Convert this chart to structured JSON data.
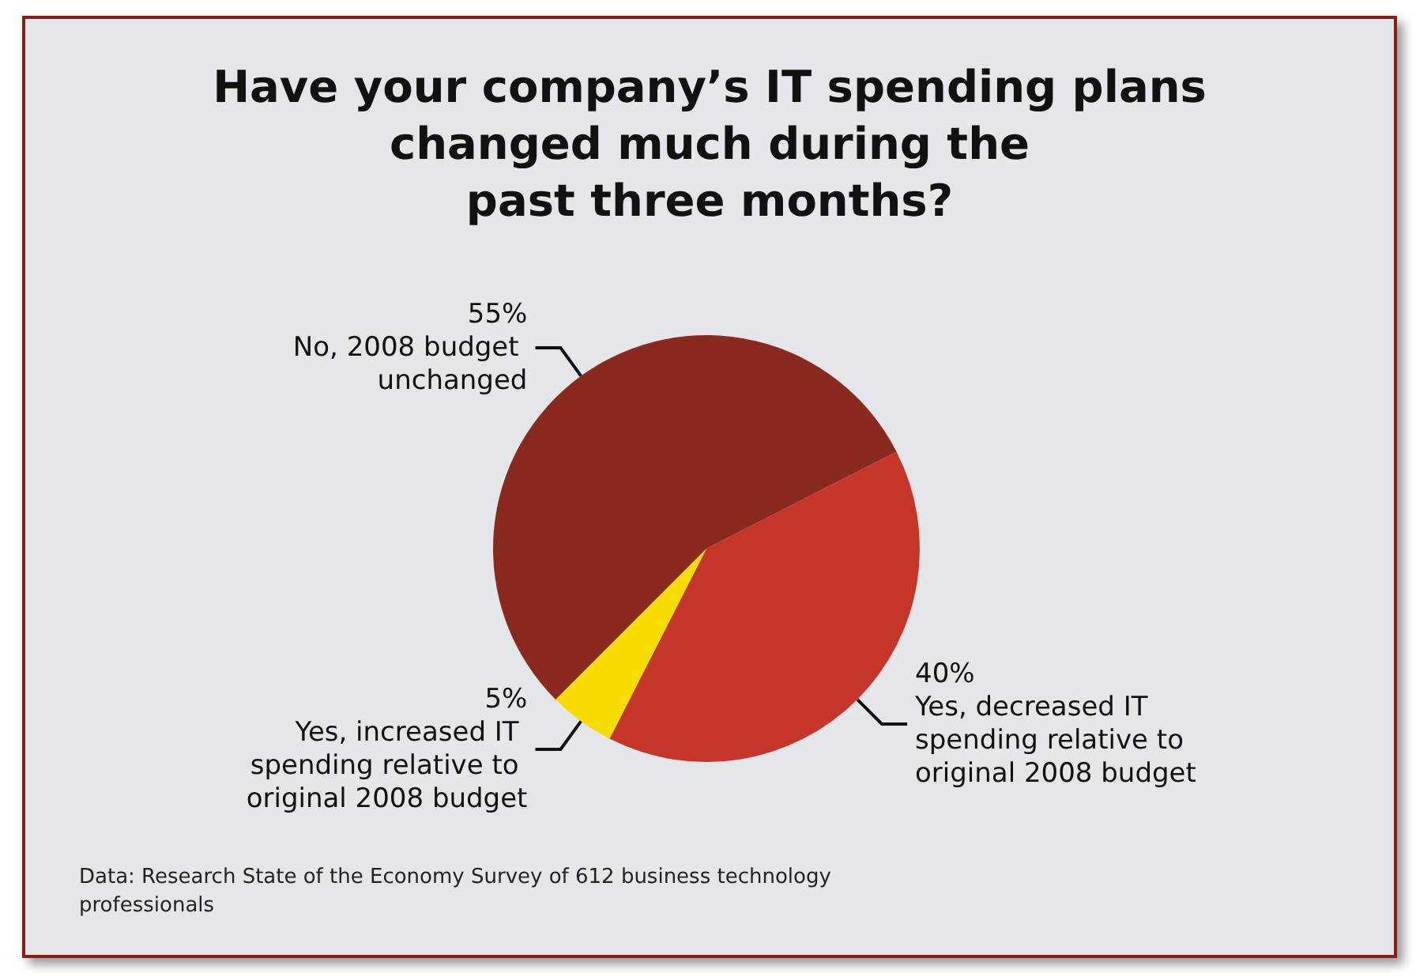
{
  "chart_data": {
    "type": "pie",
    "title": "Have your company’s IT spending plans\nchanged much during the\npast three months?",
    "categories": [
      "Yes, decreased IT spending relative to original 2008 budget",
      "Yes, increased IT spending relative to original 2008 budget",
      "No, 2008 budget unchanged"
    ],
    "values": [
      40,
      5,
      55
    ],
    "value_labels": [
      "40%",
      "5%",
      "55%"
    ],
    "colors": [
      "#c5352a",
      "#f7dc00",
      "#8a2a1f"
    ],
    "legend": false,
    "annotations": [
      "Data: Research State of the Economy Survey of 612 business technology professionals"
    ]
  }
}
